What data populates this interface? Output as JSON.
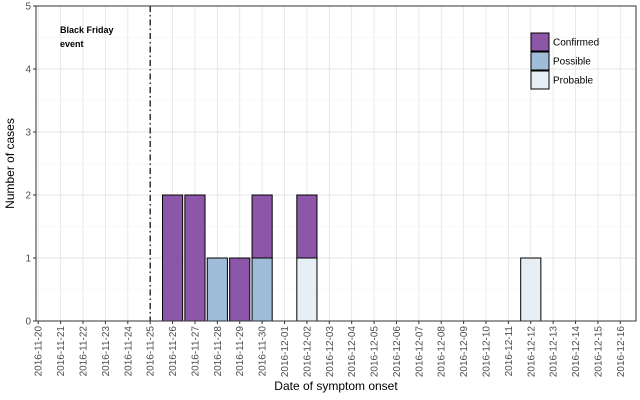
{
  "chart_data": {
    "type": "bar",
    "stacked": true,
    "xlabel": "Date of symptom onset",
    "ylabel": "Number of cases",
    "ylim": [
      0,
      5
    ],
    "yticks": [
      0,
      1,
      2,
      3,
      4,
      5
    ],
    "categories": [
      "2016-11-20",
      "2016-11-21",
      "2016-11-22",
      "2016-11-23",
      "2016-11-24",
      "2016-11-25",
      "2016-11-26",
      "2016-11-27",
      "2016-11-28",
      "2016-11-29",
      "2016-11-30",
      "2016-12-01",
      "2016-12-02",
      "2016-12-03",
      "2016-12-04",
      "2016-12-05",
      "2016-12-06",
      "2016-12-07",
      "2016-12-08",
      "2016-12-09",
      "2016-12-10",
      "2016-12-11",
      "2016-12-12",
      "2016-12-13",
      "2016-12-14",
      "2016-12-15",
      "2016-12-16"
    ],
    "series": [
      {
        "name": "Probable",
        "color": "#e6eff6",
        "values": [
          0,
          0,
          0,
          0,
          0,
          0,
          0,
          0,
          0,
          0,
          0,
          0,
          1,
          0,
          0,
          0,
          0,
          0,
          0,
          0,
          0,
          0,
          1,
          0,
          0,
          0,
          0
        ]
      },
      {
        "name": "Possible",
        "color": "#9fbcd9",
        "values": [
          0,
          0,
          0,
          0,
          0,
          0,
          0,
          0,
          1,
          0,
          1,
          0,
          0,
          0,
          0,
          0,
          0,
          0,
          0,
          0,
          0,
          0,
          0,
          0,
          0,
          0,
          0
        ]
      },
      {
        "name": "Confirmed",
        "color": "#8c57a8",
        "values": [
          0,
          0,
          0,
          0,
          0,
          0,
          2,
          2,
          0,
          1,
          1,
          0,
          1,
          0,
          0,
          0,
          0,
          0,
          0,
          0,
          0,
          0,
          0,
          0,
          0,
          0,
          0
        ]
      }
    ],
    "legend": {
      "placement": "top-right",
      "order": [
        "Confirmed",
        "Possible",
        "Probable"
      ]
    },
    "annotation": {
      "text_lines": [
        "Black Friday",
        "event"
      ],
      "vline_date": "2016-11-25"
    },
    "grid": true
  }
}
